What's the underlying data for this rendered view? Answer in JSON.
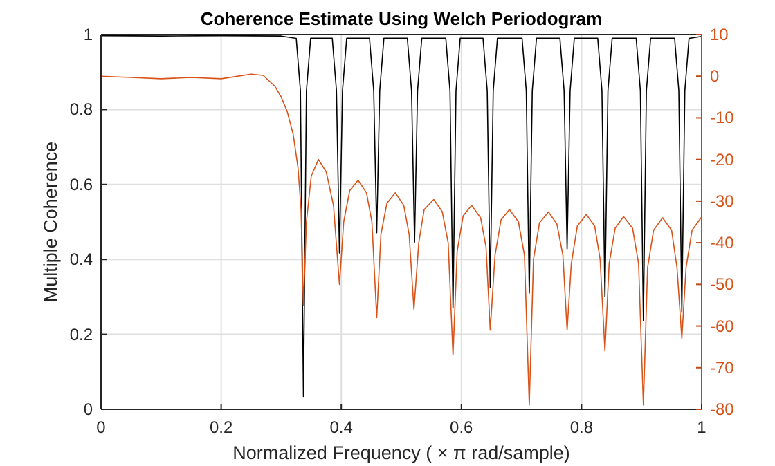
{
  "chart_data": {
    "type": "line",
    "title": "Coherence Estimate Using Welch Periodogram",
    "xlabel": "Normalized Frequency ( × π rad/sample)",
    "ylabel": "Multiple Coherence",
    "xlim": [
      0,
      1
    ],
    "xticks": [
      0,
      0.2,
      0.4,
      0.6,
      0.8,
      1
    ],
    "ylim": [
      0,
      1
    ],
    "yticks": [
      0,
      0.2,
      0.4,
      0.6,
      0.8,
      1
    ],
    "y2lim": [
      -80,
      10
    ],
    "y2ticks": [
      -80,
      -70,
      -60,
      -50,
      -40,
      -30,
      -20,
      -10,
      0,
      10
    ],
    "grid": true,
    "line_style": "solid",
    "series": [
      {
        "color": "#000000",
        "x": [
          0,
          0.1,
          0.2,
          0.3,
          0.325,
          0.332,
          0.337,
          0.342,
          0.349,
          0.385,
          0.392,
          0.397,
          0.402,
          0.409,
          0.447,
          0.454,
          0.459,
          0.464,
          0.471,
          0.51,
          0.517,
          0.522,
          0.527,
          0.534,
          0.574,
          0.581,
          0.586,
          0.591,
          0.598,
          0.636,
          0.643,
          0.648,
          0.653,
          0.66,
          0.701,
          0.708,
          0.713,
          0.718,
          0.725,
          0.764,
          0.771,
          0.776,
          0.781,
          0.788,
          0.827,
          0.834,
          0.839,
          0.844,
          0.851,
          0.891,
          0.898,
          0.903,
          0.908,
          0.915,
          0.955,
          0.962,
          0.967,
          0.972,
          0.979,
          1
        ],
        "values": [
          0.997,
          0.996,
          0.997,
          0.996,
          0.99,
          0.85,
          0.034,
          0.85,
          0.99,
          0.99,
          0.85,
          0.417,
          0.85,
          0.99,
          0.99,
          0.85,
          0.471,
          0.85,
          0.99,
          0.99,
          0.85,
          0.446,
          0.85,
          0.99,
          0.99,
          0.85,
          0.27,
          0.85,
          0.99,
          0.99,
          0.85,
          0.325,
          0.85,
          0.99,
          0.99,
          0.85,
          0.31,
          0.85,
          0.99,
          0.99,
          0.85,
          0.428,
          0.85,
          0.99,
          0.99,
          0.85,
          0.3,
          0.85,
          0.99,
          0.99,
          0.85,
          0.237,
          0.85,
          0.99,
          0.99,
          0.85,
          0.26,
          0.85,
          0.99,
          0.995
        ]
      },
      {
        "color": "#d95319",
        "axis": "y2",
        "x": [
          0,
          0.05,
          0.1,
          0.15,
          0.2,
          0.25,
          0.27,
          0.29,
          0.3,
          0.31,
          0.32,
          0.328,
          0.333,
          0.337,
          0.342,
          0.35,
          0.362,
          0.375,
          0.387,
          0.397,
          0.404,
          0.414,
          0.428,
          0.442,
          0.451,
          0.459,
          0.466,
          0.476,
          0.49,
          0.504,
          0.513,
          0.521,
          0.529,
          0.538,
          0.554,
          0.568,
          0.578,
          0.586,
          0.593,
          0.603,
          0.617,
          0.632,
          0.641,
          0.648,
          0.656,
          0.666,
          0.68,
          0.695,
          0.705,
          0.713,
          0.72,
          0.73,
          0.745,
          0.759,
          0.769,
          0.776,
          0.783,
          0.793,
          0.808,
          0.822,
          0.831,
          0.839,
          0.846,
          0.856,
          0.87,
          0.885,
          0.895,
          0.903,
          0.91,
          0.92,
          0.935,
          0.95,
          0.959,
          0.967,
          0.974,
          0.984,
          1
        ],
        "values": [
          0,
          -0.3,
          -0.6,
          -0.3,
          -0.6,
          0.5,
          0.2,
          -2.5,
          -5,
          -8.5,
          -14,
          -22,
          -32,
          -55,
          -35,
          -24,
          -20,
          -23,
          -31,
          -50,
          -35,
          -27.5,
          -25,
          -28,
          -35,
          -58,
          -38,
          -30.5,
          -28,
          -31,
          -38,
          -56,
          -40,
          -32,
          -29.6,
          -32.5,
          -40,
          -67,
          -42,
          -33.5,
          -31,
          -34,
          -41,
          -61,
          -43,
          -34.5,
          -32,
          -35,
          -43,
          -79,
          -44,
          -35.2,
          -32.6,
          -35.5,
          -43,
          -61,
          -45,
          -36,
          -33.2,
          -36,
          -44,
          -66,
          -45,
          -36.5,
          -33.7,
          -36.5,
          -45,
          -79,
          -46,
          -37,
          -34,
          -37,
          -46,
          -63,
          -46,
          -37,
          -33.8
        ]
      }
    ]
  }
}
